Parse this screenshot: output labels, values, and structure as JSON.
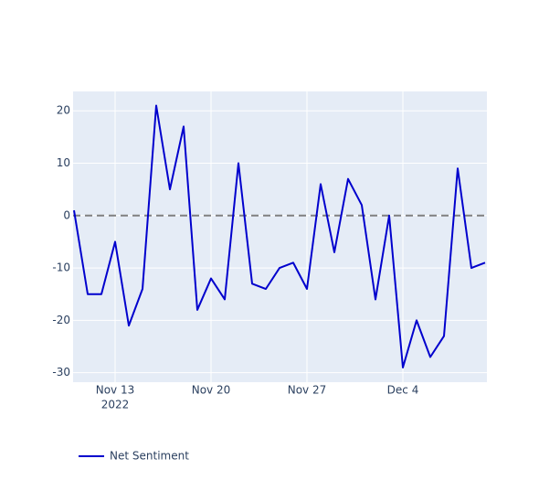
{
  "chart_data": {
    "type": "line",
    "x": [
      "2022-11-10",
      "2022-11-11",
      "2022-11-12",
      "2022-11-13",
      "2022-11-14",
      "2022-11-15",
      "2022-11-16",
      "2022-11-17",
      "2022-11-18",
      "2022-11-19",
      "2022-11-20",
      "2022-11-21",
      "2022-11-22",
      "2022-11-23",
      "2022-11-24",
      "2022-11-25",
      "2022-11-26",
      "2022-11-27",
      "2022-11-28",
      "2022-11-29",
      "2022-11-30",
      "2022-12-01",
      "2022-12-02",
      "2022-12-03",
      "2022-12-04",
      "2022-12-05",
      "2022-12-06",
      "2022-12-07",
      "2022-12-08",
      "2022-12-09",
      "2022-12-10"
    ],
    "series": [
      {
        "name": "Net Sentiment",
        "color": "#0000cd",
        "values": [
          1,
          -15,
          -15,
          -5,
          -21,
          -14,
          21,
          5,
          17,
          -18,
          -12,
          -16,
          10,
          -13,
          -14,
          -10,
          -9,
          -14,
          6,
          -7,
          7,
          2,
          -16,
          0,
          -29,
          -20,
          -27,
          -23,
          9,
          -10,
          -9
        ]
      }
    ],
    "xlim": [
      "2022-11-10",
      "2022-12-10"
    ],
    "xticks": [
      {
        "value": "2022-11-13",
        "label": "Nov 13"
      },
      {
        "value": "2022-11-20",
        "label": "Nov 20"
      },
      {
        "value": "2022-11-27",
        "label": "Nov 27"
      },
      {
        "value": "2022-12-04",
        "label": "Dec 4"
      }
    ],
    "xtick_year_label": "2022",
    "ylim": [
      -31.8,
      23.7
    ],
    "yticks": [
      -30,
      -20,
      -10,
      0,
      10,
      20
    ],
    "reference_line": {
      "y": 0,
      "color": "#808080",
      "dash": true
    },
    "grid": true,
    "legend": "bottom-left"
  }
}
